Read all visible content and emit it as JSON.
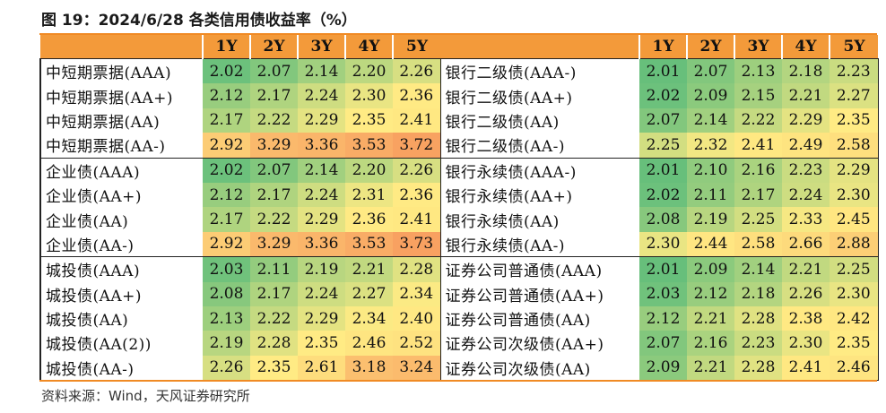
{
  "title": "图 19：2024/6/28 各类信用债收益率（%）",
  "source": "资料来源：Wind，天风证券研究所",
  "headers": [
    "1Y",
    "2Y",
    "3Y",
    "4Y",
    "5Y"
  ],
  "rows": [
    {
      "left_label": "中短期票据(AAA)",
      "left": [
        "2.02",
        "2.07",
        "2.14",
        "2.20",
        "2.26"
      ],
      "right_label": "银行二级债(AAA-)",
      "right": [
        "2.01",
        "2.07",
        "2.13",
        "2.18",
        "2.23"
      ]
    },
    {
      "left_label": "中短期票据(AA+)",
      "left": [
        "2.12",
        "2.17",
        "2.24",
        "2.30",
        "2.36"
      ],
      "right_label": "银行二级债(AA+)",
      "right": [
        "2.02",
        "2.09",
        "2.15",
        "2.21",
        "2.27"
      ]
    },
    {
      "left_label": "中短期票据(AA)",
      "left": [
        "2.17",
        "2.22",
        "2.29",
        "2.35",
        "2.41"
      ],
      "right_label": "银行二级债(AA)",
      "right": [
        "2.07",
        "2.14",
        "2.22",
        "2.29",
        "2.35"
      ]
    },
    {
      "left_label": "中短期票据(AA-)",
      "left": [
        "2.92",
        "3.29",
        "3.36",
        "3.53",
        "3.72"
      ],
      "right_label": "银行二级债(AA-)",
      "right": [
        "2.25",
        "2.32",
        "2.41",
        "2.49",
        "2.58"
      ]
    },
    {
      "left_label": "企业债(AAA)",
      "left": [
        "2.02",
        "2.07",
        "2.14",
        "2.20",
        "2.26"
      ],
      "right_label": "银行永续债(AAA-)",
      "right": [
        "2.01",
        "2.10",
        "2.16",
        "2.23",
        "2.29"
      ]
    },
    {
      "left_label": "企业债(AA+)",
      "left": [
        "2.12",
        "2.17",
        "2.24",
        "2.31",
        "2.36"
      ],
      "right_label": "银行永续债(AA+)",
      "right": [
        "2.02",
        "2.11",
        "2.17",
        "2.24",
        "2.30"
      ]
    },
    {
      "left_label": "企业债(AA)",
      "left": [
        "2.17",
        "2.22",
        "2.29",
        "2.36",
        "2.41"
      ],
      "right_label": "银行永续债(AA)",
      "right": [
        "2.08",
        "2.19",
        "2.25",
        "2.33",
        "2.45"
      ]
    },
    {
      "left_label": "企业债(AA-)",
      "left": [
        "2.92",
        "3.29",
        "3.36",
        "3.53",
        "3.73"
      ],
      "right_label": "银行永续债(AA-)",
      "right": [
        "2.30",
        "2.44",
        "2.58",
        "2.66",
        "2.88"
      ]
    },
    {
      "left_label": "城投债(AAA)",
      "left": [
        "2.03",
        "2.11",
        "2.19",
        "2.21",
        "2.28"
      ],
      "right_label": "证券公司普通债(AAA)",
      "right": [
        "2.01",
        "2.09",
        "2.14",
        "2.21",
        "2.25"
      ]
    },
    {
      "left_label": "城投债(AA+)",
      "left": [
        "2.08",
        "2.17",
        "2.24",
        "2.27",
        "2.34"
      ],
      "right_label": "证券公司普通债(AA+)",
      "right": [
        "2.03",
        "2.12",
        "2.18",
        "2.26",
        "2.30"
      ]
    },
    {
      "left_label": "城投债(AA)",
      "left": [
        "2.13",
        "2.22",
        "2.29",
        "2.34",
        "2.40"
      ],
      "right_label": "证券公司普通债(AA)",
      "right": [
        "2.12",
        "2.21",
        "2.28",
        "2.38",
        "2.42"
      ]
    },
    {
      "left_label": "城投债(AA(2))",
      "left": [
        "2.19",
        "2.28",
        "2.35",
        "2.46",
        "2.52"
      ],
      "right_label": "证券公司次级债(AA+)",
      "right": [
        "2.07",
        "2.16",
        "2.23",
        "2.30",
        "2.35"
      ]
    },
    {
      "left_label": "城投债(AA-)",
      "left": [
        "2.26",
        "2.35",
        "2.61",
        "3.18",
        "3.24"
      ],
      "right_label": "证券公司次级债(AA)",
      "right": [
        "2.09",
        "2.21",
        "2.28",
        "2.41",
        "2.46"
      ]
    }
  ],
  "colors": {
    "accent": "#f08a24",
    "header_bg": "#f39a3a",
    "low": "#63be7b",
    "mid": "#ffeb84",
    "high": "#f8a060"
  }
}
